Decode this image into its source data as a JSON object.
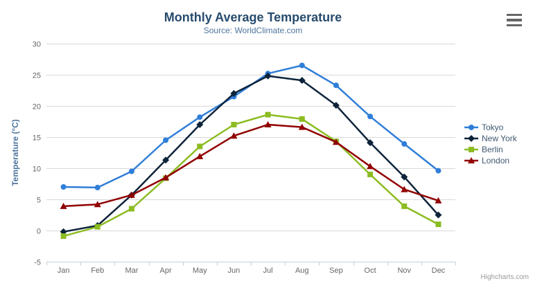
{
  "header": {
    "title": "Monthly Average Temperature",
    "subtitle": "Source: WorldClimate.com"
  },
  "export_menu": {
    "icon": "hamburger-icon",
    "tooltip_label": "Chart context menu"
  },
  "credit": {
    "label": "Highcharts.com"
  },
  "colors": {
    "title_text": "#274b6d",
    "subtitle_text": "#4d759e",
    "axis_title_text": "#4d759e",
    "axis_label_text": "#666666",
    "legend_text": "#3e576f",
    "gridline": "#d8d8d8",
    "axis_line": "#c0d0e0",
    "credit_text": "#999999",
    "menu_icon": "#666666"
  },
  "chart_data": {
    "type": "line",
    "title": "Monthly Average Temperature",
    "subtitle": "Source: WorldClimate.com",
    "xlabel": "",
    "ylabel": "Temperature (°C)",
    "ylim": [
      -5,
      30
    ],
    "ytick_step": 5,
    "ytick_labels": [
      "-5",
      "0",
      "5",
      "10",
      "15",
      "20",
      "25",
      "30"
    ],
    "grid": true,
    "legend_position": "right",
    "categories": [
      "Jan",
      "Feb",
      "Mar",
      "Apr",
      "May",
      "Jun",
      "Jul",
      "Aug",
      "Sep",
      "Oct",
      "Nov",
      "Dec"
    ],
    "series": [
      {
        "name": "Tokyo",
        "color": "#2f7ed8",
        "marker": "circle",
        "values": [
          7.0,
          6.9,
          9.5,
          14.5,
          18.2,
          21.5,
          25.2,
          26.5,
          23.3,
          18.3,
          13.9,
          9.6
        ]
      },
      {
        "name": "New York",
        "color": "#0d233a",
        "marker": "diamond",
        "values": [
          -0.2,
          0.8,
          5.7,
          11.3,
          17.0,
          22.0,
          24.8,
          24.1,
          20.1,
          14.1,
          8.6,
          2.5
        ]
      },
      {
        "name": "Berlin",
        "color": "#8bbc21",
        "marker": "square",
        "values": [
          -0.9,
          0.6,
          3.5,
          8.4,
          13.5,
          17.0,
          18.6,
          17.9,
          14.3,
          9.0,
          3.9,
          1.0
        ]
      },
      {
        "name": "London",
        "color": "#910000",
        "marker": "triangle",
        "values": [
          3.9,
          4.2,
          5.7,
          8.5,
          11.9,
          15.2,
          17.0,
          16.6,
          14.2,
          10.3,
          6.6,
          4.8
        ]
      }
    ]
  }
}
